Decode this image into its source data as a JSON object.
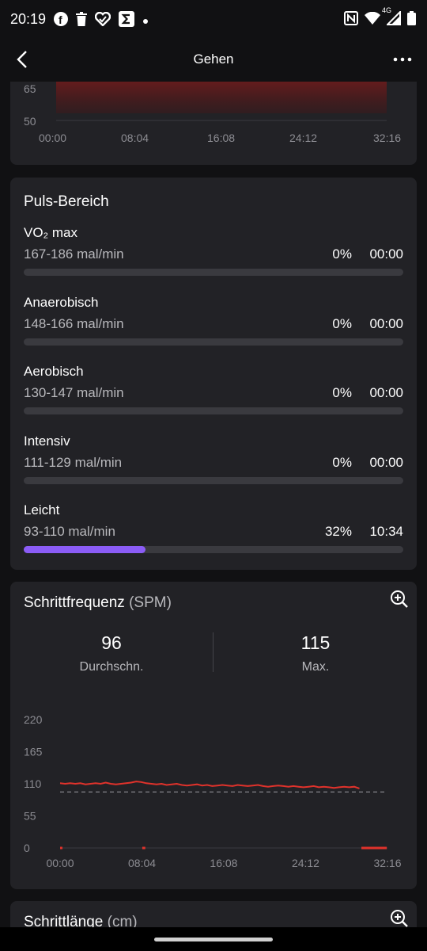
{
  "status_bar": {
    "time": "20:19",
    "left_icons": [
      "facebook-icon",
      "trash-icon",
      "health-heart-icon",
      "sigma-app-icon",
      "dot-icon"
    ],
    "network": "4G",
    "right_icons": [
      "nfc-icon",
      "wifi-icon",
      "signal-icon",
      "battery-icon"
    ]
  },
  "app_bar": {
    "title": "Gehen"
  },
  "heart_chart": {
    "chart_data": {
      "type": "area",
      "y_tick_labels": [
        "65",
        "50"
      ],
      "x_tick_labels": [
        "00:00",
        "08:04",
        "16:08",
        "24:12",
        "32:16"
      ],
      "line_color": "#e0322b",
      "series": [
        {
          "x": [
            0.5,
            1.0,
            1.5,
            2.0,
            2.5,
            3.0,
            3.5,
            4.0,
            4.5,
            5.0,
            5.5,
            6.0,
            6.5,
            7.0,
            7.5,
            8.0,
            8.5,
            9.0,
            9.5,
            10.0,
            10.5,
            11.0,
            11.5,
            12.0,
            12.5,
            13.0,
            13.5,
            14.0,
            14.5,
            15.0,
            15.5,
            16.0,
            16.5,
            17.0,
            17.5,
            18.0,
            18.5,
            19.0,
            19.5,
            20.0,
            20.5,
            21.0,
            21.5,
            22.0,
            22.5,
            23.0,
            23.5,
            24.0,
            24.5,
            25.0,
            25.5,
            26.0,
            26.5,
            27.0,
            27.5,
            28.0,
            28.5,
            29.0,
            29.5,
            30.0,
            30.5,
            31.0,
            31.5,
            32.0
          ],
          "y": [
            69,
            68,
            68,
            69,
            68,
            68,
            69,
            68,
            66,
            67,
            68,
            69,
            68,
            68,
            68,
            68,
            68,
            68,
            68,
            68,
            68,
            68,
            68,
            68,
            68,
            68,
            68,
            68,
            68,
            68,
            68,
            68,
            68,
            68,
            68,
            68,
            68,
            68,
            68,
            68,
            68,
            68,
            68,
            68,
            68,
            68,
            68,
            68,
            68,
            68,
            68,
            68,
            68,
            68,
            68,
            68,
            68,
            68,
            68,
            68,
            68,
            68,
            68,
            68
          ]
        }
      ],
      "visible_segment": [
        [
          0.9,
          69
        ],
        [
          1.2,
          68
        ],
        [
          1.5,
          67
        ],
        [
          2.0,
          67
        ],
        [
          2.4,
          67
        ],
        [
          2.7,
          68
        ],
        [
          3.1,
          67
        ],
        [
          3.4,
          68
        ],
        [
          3.7,
          69
        ],
        [
          4.0,
          68
        ],
        [
          4.3,
          66
        ],
        [
          4.8,
          65
        ],
        [
          5.1,
          66
        ],
        [
          5.5,
          67
        ],
        [
          5.9,
          68
        ],
        [
          6.3,
          69
        ]
      ]
    }
  },
  "hr_zones": {
    "title": "Puls-Bereich",
    "zones": [
      {
        "name": "VO₂ max",
        "range": "167-186 mal/min",
        "percent": "0%",
        "time": "00:00",
        "fraction": 0
      },
      {
        "name": "Anaerobisch",
        "range": "148-166 mal/min",
        "percent": "0%",
        "time": "00:00",
        "fraction": 0
      },
      {
        "name": "Aerobisch",
        "range": "130-147 mal/min",
        "percent": "0%",
        "time": "00:00",
        "fraction": 0
      },
      {
        "name": "Intensiv",
        "range": "111-129 mal/min",
        "percent": "0%",
        "time": "00:00",
        "fraction": 0
      },
      {
        "name": "Leicht",
        "range": "93-110 mal/min",
        "percent": "32%",
        "time": "10:34",
        "fraction": 0.32
      }
    ],
    "fill_color": "#8b5cf6"
  },
  "cadence": {
    "title": "Schrittfrequenz",
    "unit": "(SPM)",
    "avg_value": "96",
    "avg_label": "Durchschn.",
    "max_value": "115",
    "max_label": "Max.",
    "chart_data": {
      "type": "line",
      "y_tick_labels": [
        "220",
        "165",
        "110",
        "55",
        "0"
      ],
      "x_tick_labels": [
        "00:00",
        "08:04",
        "16:08",
        "24:12",
        "32:16"
      ],
      "ylim": [
        0,
        220
      ],
      "xlim": [
        0,
        32.27
      ],
      "average_line": 96,
      "line_color": "#e0322b",
      "series": [
        {
          "x": [
            0.0,
            0.5,
            1.0,
            1.5,
            2.0,
            2.5,
            3.0,
            3.5,
            4.0,
            4.5,
            5.0,
            5.5,
            6.0,
            6.5,
            7.0,
            7.5,
            8.0,
            8.5,
            9.0,
            9.5,
            10.0,
            10.5,
            11.0,
            11.5,
            12.0,
            12.5,
            13.0,
            13.5,
            14.0,
            14.5,
            15.0,
            15.5,
            16.0,
            16.5,
            17.0,
            17.5,
            18.0,
            18.5,
            19.0,
            19.5,
            20.0,
            20.5,
            21.0,
            21.5,
            22.0,
            22.5,
            23.0,
            23.5,
            24.0,
            24.5,
            25.0,
            25.5,
            26.0,
            26.5,
            27.0,
            27.5,
            28.0,
            28.5,
            29.0,
            29.5
          ],
          "y": [
            111,
            110,
            111,
            110,
            111,
            109,
            110,
            111,
            110,
            112,
            110,
            109,
            110,
            111,
            112,
            114,
            113,
            111,
            110,
            109,
            110,
            108,
            109,
            110,
            108,
            107,
            108,
            109,
            107,
            108,
            106,
            107,
            108,
            107,
            106,
            108,
            107,
            106,
            107,
            108,
            106,
            105,
            106,
            107,
            106,
            105,
            106,
            105,
            104,
            105,
            106,
            104,
            105,
            104,
            103,
            104,
            105,
            104,
            105,
            102
          ]
        }
      ],
      "zero_segments": [
        [
          0.0,
          0.1
        ],
        [
          8.1,
          8.4
        ],
        [
          29.7,
          32.2
        ]
      ]
    }
  },
  "next_card": {
    "title": "Schrittlänge",
    "unit": "(cm)"
  }
}
